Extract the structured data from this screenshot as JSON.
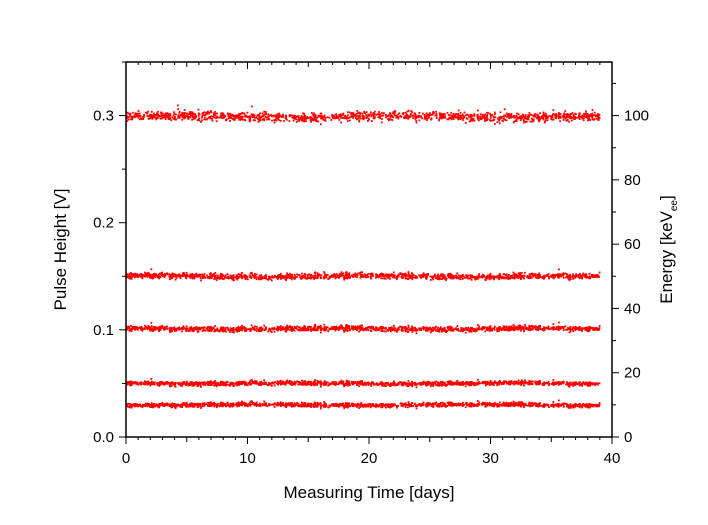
{
  "chart_data": {
    "type": "scatter",
    "title": "",
    "xlabel": "Measuring Time [days]",
    "ylabel": "Pulse Height [V]",
    "y2label": {
      "main": "Energy [keV",
      "sub": "ee",
      "close": "]"
    },
    "xlim": [
      0,
      40
    ],
    "ylim": [
      0,
      0.35
    ],
    "y2lim": [
      0,
      116.67
    ],
    "x_ticks": [
      "0",
      "10",
      "20",
      "30",
      "40"
    ],
    "y_ticks": [
      "0.0",
      "0.1",
      "0.2",
      "0.3"
    ],
    "y2_ticks": [
      "0",
      "20",
      "40",
      "60",
      "80",
      "100"
    ],
    "grid": false,
    "marker_color": "#ff0000",
    "series": [
      {
        "x_range": [
          0,
          39
        ],
        "mean": 0.299,
        "spread": 0.003
      },
      {
        "x_range": [
          0,
          39
        ],
        "mean": 0.15,
        "spread": 0.002
      },
      {
        "x_range": [
          0,
          39
        ],
        "mean": 0.101,
        "spread": 0.0018
      },
      {
        "x_range": [
          0,
          39
        ],
        "mean": 0.05,
        "spread": 0.0015
      },
      {
        "x_range": [
          0,
          39
        ],
        "mean": 0.03,
        "spread": 0.0015
      }
    ]
  }
}
